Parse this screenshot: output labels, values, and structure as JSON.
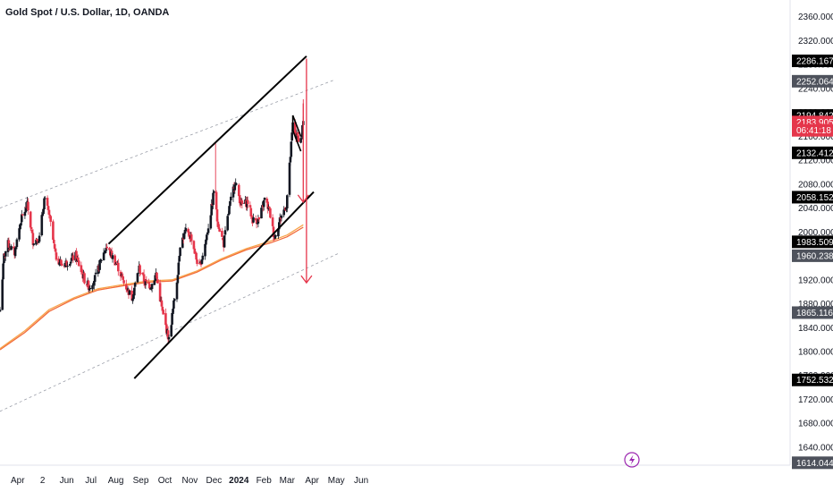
{
  "header": {
    "title": "Gold Spot / U.S. Dollar, 1D, OANDA"
  },
  "colors": {
    "up": "#131722",
    "down": "#e5364b",
    "ma_fast": "#f7a44b",
    "ma_slow": "#f26a3a",
    "channel": "#000000",
    "dashed": "#9a9ea8",
    "arrow": "#e5364b",
    "label_dark": "#000000",
    "label_gray": "#4e525c",
    "label_red": "#e5364b"
  },
  "chart_data": {
    "type": "candlestick",
    "title": "Gold Spot / U.S. Dollar, 1D, OANDA",
    "ylim": [
      1610,
      2370
    ],
    "y_ticks": [
      2360,
      2320,
      2280,
      2240,
      2200,
      2160,
      2120,
      2080,
      2040,
      2000,
      1960,
      1920,
      1880,
      1840,
      1800,
      1760,
      1720,
      1680,
      1640
    ],
    "y_tick_labels": [
      "2360.000",
      "2320.000",
      "2280.000",
      "2240.000",
      "2200.000",
      "2160.000",
      "2120.000",
      "2080.000",
      "2040.000",
      "2000.000",
      "1960.000",
      "1920.000",
      "1880.000",
      "1840.000",
      "1800.000",
      "1760.000",
      "1720.000",
      "1680.000",
      "1640.000"
    ],
    "x_ticks": [
      {
        "label": "Apr",
        "date": "2023-04-01",
        "bold": false
      },
      {
        "label": "2",
        "date": "2023-05-02",
        "bold": false
      },
      {
        "label": "Jun",
        "date": "2023-06-01",
        "bold": false
      },
      {
        "label": "Jul",
        "date": "2023-07-01",
        "bold": false
      },
      {
        "label": "Aug",
        "date": "2023-08-01",
        "bold": false
      },
      {
        "label": "Sep",
        "date": "2023-09-01",
        "bold": false
      },
      {
        "label": "Oct",
        "date": "2023-10-01",
        "bold": false
      },
      {
        "label": "Nov",
        "date": "2023-11-01",
        "bold": false
      },
      {
        "label": "Dec",
        "date": "2023-12-01",
        "bold": false
      },
      {
        "label": "2024",
        "date": "2024-01-01",
        "bold": true
      },
      {
        "label": "Feb",
        "date": "2024-02-01",
        "bold": false
      },
      {
        "label": "Mar",
        "date": "2024-03-01",
        "bold": false
      },
      {
        "label": "Apr",
        "date": "2024-04-01",
        "bold": false
      },
      {
        "label": "May",
        "date": "2024-05-01",
        "bold": false
      },
      {
        "label": "Jun",
        "date": "2024-06-01",
        "bold": false
      }
    ],
    "price_path": [
      [
        "2023-03-10",
        1870
      ],
      [
        "2023-03-15",
        1960
      ],
      [
        "2023-03-20",
        1980
      ],
      [
        "2023-03-28",
        1965
      ],
      [
        "2023-04-05",
        2020
      ],
      [
        "2023-04-13",
        2045
      ],
      [
        "2023-04-20",
        1985
      ],
      [
        "2023-04-28",
        1990
      ],
      [
        "2023-05-04",
        2055
      ],
      [
        "2023-05-10",
        2030
      ],
      [
        "2023-05-18",
        1960
      ],
      [
        "2023-05-26",
        1945
      ],
      [
        "2023-06-02",
        1950
      ],
      [
        "2023-06-12",
        1960
      ],
      [
        "2023-06-23",
        1920
      ],
      [
        "2023-06-29",
        1908
      ],
      [
        "2023-07-07",
        1925
      ],
      [
        "2023-07-14",
        1955
      ],
      [
        "2023-07-20",
        1975
      ],
      [
        "2023-07-28",
        1958
      ],
      [
        "2023-08-04",
        1940
      ],
      [
        "2023-08-11",
        1915
      ],
      [
        "2023-08-21",
        1890
      ],
      [
        "2023-08-30",
        1940
      ],
      [
        "2023-09-06",
        1915
      ],
      [
        "2023-09-14",
        1910
      ],
      [
        "2023-09-20",
        1930
      ],
      [
        "2023-09-28",
        1865
      ],
      [
        "2023-10-06",
        1820
      ],
      [
        "2023-10-11",
        1870
      ],
      [
        "2023-10-16",
        1920
      ],
      [
        "2023-10-20",
        1980
      ],
      [
        "2023-10-27",
        2000
      ],
      [
        "2023-11-03",
        1990
      ],
      [
        "2023-11-09",
        1955
      ],
      [
        "2023-11-13",
        1940
      ],
      [
        "2023-11-20",
        1980
      ],
      [
        "2023-11-28",
        2040
      ],
      [
        "2023-12-01",
        2070
      ],
      [
        "2023-12-05",
        2020
      ],
      [
        "2023-12-13",
        1980
      ],
      [
        "2023-12-20",
        2040
      ],
      [
        "2023-12-27",
        2085
      ],
      [
        "2024-01-04",
        2045
      ],
      [
        "2024-01-12",
        2050
      ],
      [
        "2024-01-18",
        2020
      ],
      [
        "2024-01-26",
        2020
      ],
      [
        "2024-02-02",
        2055
      ],
      [
        "2024-02-08",
        2035
      ],
      [
        "2024-02-14",
        1990
      ],
      [
        "2024-02-22",
        2025
      ],
      [
        "2024-02-29",
        2045
      ],
      [
        "2024-03-04",
        2110
      ],
      [
        "2024-03-08",
        2180
      ],
      [
        "2024-03-12",
        2160
      ],
      [
        "2024-03-18",
        2155
      ],
      [
        "2024-03-21",
        2185
      ]
    ],
    "ma_fast": [
      [
        "2023-03-10",
        1805
      ],
      [
        "2023-04-10",
        1835
      ],
      [
        "2023-05-10",
        1870
      ],
      [
        "2023-06-10",
        1890
      ],
      [
        "2023-07-10",
        1905
      ],
      [
        "2023-08-10",
        1912
      ],
      [
        "2023-09-10",
        1918
      ],
      [
        "2023-10-10",
        1920
      ],
      [
        "2023-11-10",
        1935
      ],
      [
        "2023-12-10",
        1955
      ],
      [
        "2024-01-10",
        1972
      ],
      [
        "2024-02-10",
        1985
      ],
      [
        "2024-03-01",
        1995
      ],
      [
        "2024-03-21",
        2012
      ]
    ],
    "ma_slow": [
      [
        "2023-03-10",
        1803
      ],
      [
        "2023-04-10",
        1832
      ],
      [
        "2023-05-10",
        1867
      ],
      [
        "2023-06-10",
        1888
      ],
      [
        "2023-07-10",
        1903
      ],
      [
        "2023-08-10",
        1910
      ],
      [
        "2023-09-10",
        1916
      ],
      [
        "2023-10-10",
        1918
      ],
      [
        "2023-11-10",
        1933
      ],
      [
        "2023-12-10",
        1953
      ],
      [
        "2024-01-10",
        1970
      ],
      [
        "2024-02-10",
        1982
      ],
      [
        "2024-03-01",
        1992
      ],
      [
        "2024-03-21",
        2008
      ]
    ],
    "channel_upper": [
      [
        "2023-07-23",
        1980
      ],
      [
        "2024-03-25",
        2294
      ]
    ],
    "channel_lower": [
      [
        "2023-08-24",
        1755
      ],
      [
        "2024-04-03",
        2067
      ]
    ],
    "dashed_upper": [
      [
        "2023-03-10",
        2040
      ],
      [
        "2024-04-28",
        2254
      ]
    ],
    "dashed_lower": [
      [
        "2023-03-10",
        1700
      ],
      [
        "2024-05-05",
        1965
      ]
    ],
    "flag": [
      [
        "2024-03-08",
        2195
      ],
      [
        "2024-03-18",
        2160
      ],
      [
        "2024-03-08",
        2170
      ],
      [
        "2024-03-18",
        2135
      ]
    ],
    "arrows": [
      {
        "date": "2024-03-25",
        "from": 2290,
        "to": 1915
      },
      {
        "date": "2024-03-21",
        "from": 2215,
        "to": 2050
      }
    ],
    "spike_wicks": [
      {
        "date": "2023-12-03",
        "high": 2148,
        "low": 2060
      },
      {
        "date": "2024-03-21",
        "high": 2222,
        "low": 2170
      }
    ],
    "price_labels": [
      {
        "text": "2286.167",
        "value": 2286.167,
        "style": "dark"
      },
      {
        "text": "2252.064",
        "value": 2252.064,
        "style": "gray"
      },
      {
        "text": "2194.842",
        "value": 2194.842,
        "style": "dark"
      },
      {
        "text": "2183.905",
        "value": 2183.905,
        "style": "red"
      },
      {
        "text": "06:41:18",
        "value": 2170,
        "style": "red"
      },
      {
        "text": "2132.412",
        "value": 2132.412,
        "style": "dark"
      },
      {
        "text": "2058.152",
        "value": 2058.152,
        "style": "dark"
      },
      {
        "text": "1983.509",
        "value": 1983.509,
        "style": "dark"
      },
      {
        "text": "1960.238",
        "value": 1960.238,
        "style": "gray"
      },
      {
        "text": "1865.116",
        "value": 1865.116,
        "style": "gray"
      },
      {
        "text": "1752.532",
        "value": 1752.532,
        "style": "dark"
      },
      {
        "text": "1614.044",
        "value": 1614.044,
        "style": "gray"
      }
    ],
    "grid": false
  }
}
